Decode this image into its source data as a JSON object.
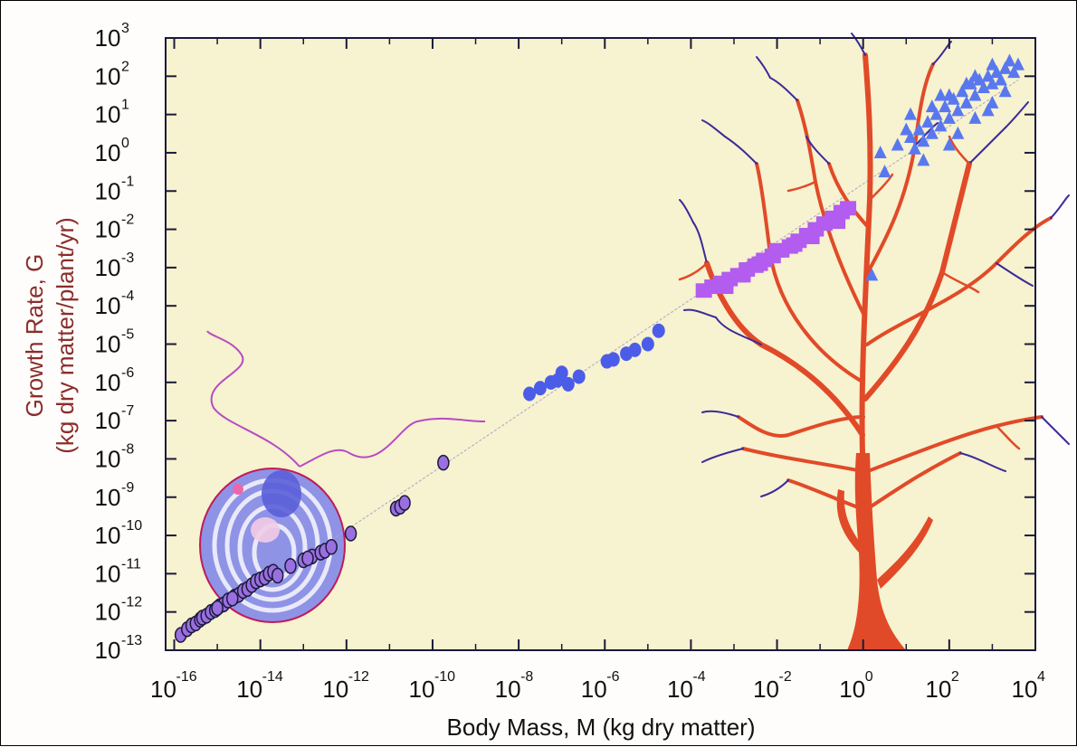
{
  "chart_data": {
    "type": "scatter",
    "xlabel": "Body Mass, M (kg dry matter)",
    "ylabel_line1": "Growth Rate, G",
    "ylabel_line2": "(kg dry matter/plant/yr)",
    "xscale": "log",
    "yscale": "log",
    "xlim_log10": [
      -16.2,
      4
    ],
    "ylim_log10": [
      -13,
      3
    ],
    "x_ticks": [
      {
        "base": "10",
        "exp": "-16",
        "log": -16
      },
      {
        "base": "10",
        "exp": "-14",
        "log": -14
      },
      {
        "base": "10",
        "exp": "-12",
        "log": -12
      },
      {
        "base": "10",
        "exp": "-10",
        "log": -10
      },
      {
        "base": "10",
        "exp": "-8",
        "log": -8
      },
      {
        "base": "10",
        "exp": "-6",
        "log": -6
      },
      {
        "base": "10",
        "exp": "-4",
        "log": -4
      },
      {
        "base": "10",
        "exp": "-2",
        "log": -2
      },
      {
        "base": "10",
        "exp": "0",
        "log": 0
      },
      {
        "base": "10",
        "exp": "2",
        "log": 2
      },
      {
        "base": "10",
        "exp": "4",
        "log": 4
      }
    ],
    "y_ticks": [
      {
        "base": "10",
        "exp": "3",
        "log": 3
      },
      {
        "base": "10",
        "exp": "2",
        "log": 2
      },
      {
        "base": "10",
        "exp": "1",
        "log": 1
      },
      {
        "base": "10",
        "exp": "0",
        "log": 0
      },
      {
        "base": "10",
        "exp": "-1",
        "log": -1
      },
      {
        "base": "10",
        "exp": "-2",
        "log": -2
      },
      {
        "base": "10",
        "exp": "-3",
        "log": -3
      },
      {
        "base": "10",
        "exp": "-4",
        "log": -4
      },
      {
        "base": "10",
        "exp": "-5",
        "log": -5
      },
      {
        "base": "10",
        "exp": "-6",
        "log": -6
      },
      {
        "base": "10",
        "exp": "-7",
        "log": -7
      },
      {
        "base": "10",
        "exp": "-8",
        "log": -8
      },
      {
        "base": "10",
        "exp": "-9",
        "log": -9
      },
      {
        "base": "10",
        "exp": "-10",
        "log": -10
      },
      {
        "base": "10",
        "exp": "-11",
        "log": -11
      },
      {
        "base": "10",
        "exp": "-12",
        "log": -12
      },
      {
        "base": "10",
        "exp": "-13",
        "log": -13
      }
    ],
    "trend_line_log10": {
      "x": [
        -15.9,
        3.6
      ],
      "y": [
        -12.8,
        1.9
      ]
    },
    "series": [
      {
        "color": "#9a6fe0",
        "marker": "circle-outlined",
        "points_log10": [
          [
            -15.85,
            -12.6
          ],
          [
            -15.7,
            -12.45
          ],
          [
            -15.6,
            -12.35
          ],
          [
            -15.5,
            -12.3
          ],
          [
            -15.4,
            -12.2
          ],
          [
            -15.35,
            -12.15
          ],
          [
            -15.25,
            -12.1
          ],
          [
            -15.15,
            -12.0
          ],
          [
            -15.05,
            -11.95
          ],
          [
            -14.95,
            -11.85
          ],
          [
            -14.85,
            -11.8
          ],
          [
            -14.75,
            -11.7
          ],
          [
            -14.6,
            -11.6
          ],
          [
            -14.5,
            -11.55
          ],
          [
            -14.4,
            -11.45
          ],
          [
            -14.3,
            -11.4
          ],
          [
            -14.2,
            -11.3
          ],
          [
            -14.1,
            -11.2
          ],
          [
            -14.0,
            -11.15
          ],
          [
            -13.9,
            -11.1
          ],
          [
            -13.8,
            -11.0
          ],
          [
            -13.7,
            -10.95
          ],
          [
            -13.6,
            -11.05
          ],
          [
            -13.0,
            -10.65
          ],
          [
            -12.8,
            -10.55
          ],
          [
            -12.6,
            -10.45
          ],
          [
            -12.5,
            -10.4
          ],
          [
            -12.35,
            -10.3
          ],
          [
            -11.9,
            -9.95
          ],
          [
            -10.85,
            -9.3
          ],
          [
            -10.75,
            -9.25
          ],
          [
            -10.65,
            -9.15
          ],
          [
            -9.75,
            -8.1
          ],
          [
            -12.9,
            -10.6
          ],
          [
            -13.3,
            -10.8
          ],
          [
            -15.0,
            -11.9
          ],
          [
            -14.65,
            -11.65
          ]
        ]
      },
      {
        "color": "#4b5de8",
        "marker": "circle",
        "points_log10": [
          [
            -7.75,
            -6.3
          ],
          [
            -7.5,
            -6.15
          ],
          [
            -7.25,
            -6.0
          ],
          [
            -7.1,
            -5.95
          ],
          [
            -7.0,
            -5.75
          ],
          [
            -6.85,
            -6.05
          ],
          [
            -6.6,
            -5.85
          ],
          [
            -5.95,
            -5.45
          ],
          [
            -5.8,
            -5.4
          ],
          [
            -5.5,
            -5.25
          ],
          [
            -5.3,
            -5.15
          ],
          [
            -5.0,
            -5.0
          ],
          [
            -4.75,
            -4.65
          ]
        ]
      },
      {
        "color": "#b35cf0",
        "marker": "square",
        "points_log10": [
          [
            -3.7,
            -3.6
          ],
          [
            -3.5,
            -3.5
          ],
          [
            -3.3,
            -3.4
          ],
          [
            -3.1,
            -3.3
          ],
          [
            -2.9,
            -3.2
          ],
          [
            -2.7,
            -3.05
          ],
          [
            -2.5,
            -2.95
          ],
          [
            -2.3,
            -2.8
          ],
          [
            -2.1,
            -2.7
          ],
          [
            -1.9,
            -2.55
          ],
          [
            -1.7,
            -2.45
          ],
          [
            -1.5,
            -2.3
          ],
          [
            -1.3,
            -2.15
          ],
          [
            -1.1,
            -2.0
          ],
          [
            -0.9,
            -1.85
          ],
          [
            -0.7,
            -1.7
          ],
          [
            -0.5,
            -1.55
          ],
          [
            -0.35,
            -1.45
          ],
          [
            -2.8,
            -3.2
          ],
          [
            -2.0,
            -2.55
          ],
          [
            -1.2,
            -2.2
          ],
          [
            -0.6,
            -1.8
          ],
          [
            -3.2,
            -3.5
          ],
          [
            -2.4,
            -2.9
          ],
          [
            -1.6,
            -2.4
          ]
        ]
      },
      {
        "color": "#5a78ee",
        "marker": "triangle",
        "points_log10": [
          [
            0.8,
            0.2
          ],
          [
            1.1,
            0.4
          ],
          [
            1.3,
            0.6
          ],
          [
            1.5,
            0.8
          ],
          [
            1.7,
            1.0
          ],
          [
            1.9,
            1.2
          ],
          [
            2.1,
            1.4
          ],
          [
            2.3,
            1.6
          ],
          [
            2.5,
            1.8
          ],
          [
            2.7,
            1.9
          ],
          [
            2.9,
            2.0
          ],
          [
            3.1,
            2.1
          ],
          [
            3.3,
            2.2
          ],
          [
            3.5,
            2.1
          ],
          [
            1.2,
            0.1
          ],
          [
            1.4,
            0.3
          ],
          [
            1.6,
            0.5
          ],
          [
            1.8,
            0.7
          ],
          [
            2.0,
            0.9
          ],
          [
            2.2,
            1.1
          ],
          [
            2.4,
            1.3
          ],
          [
            2.6,
            1.5
          ],
          [
            2.8,
            1.7
          ],
          [
            3.0,
            1.8
          ],
          [
            3.2,
            1.9
          ],
          [
            1.0,
            0.6
          ],
          [
            1.6,
            1.2
          ],
          [
            2.0,
            1.5
          ],
          [
            2.6,
            2.0
          ],
          [
            3.0,
            2.3
          ],
          [
            3.4,
            2.4
          ],
          [
            2.2,
            0.5
          ],
          [
            2.6,
            0.9
          ],
          [
            3.0,
            1.3
          ],
          [
            1.4,
            -0.2
          ],
          [
            2.0,
            0.2
          ],
          [
            0.4,
            0.0
          ],
          [
            1.8,
            1.5
          ],
          [
            2.4,
            1.8
          ],
          [
            2.9,
            1.1
          ],
          [
            0.2,
            -3.2
          ],
          [
            0.5,
            -0.5
          ],
          [
            1.1,
            1.0
          ],
          [
            3.6,
            2.3
          ],
          [
            3.3,
            1.6
          ]
        ]
      }
    ]
  },
  "colors": {
    "plot_background": "#f7f2cf",
    "trend_line": "#a9a5c8",
    "tree_trunk": "#e14a28",
    "tree_twigs": "#3a2a9a",
    "axis_title_y": "#8a2d2a",
    "axis_title_x": "#111111",
    "cell_body": "#8f93e6",
    "cell_outline": "#c01a5a",
    "flagella": "#b64cc4"
  },
  "illustrations": {
    "tree": "tree-icon",
    "cell": "cell-icon"
  }
}
